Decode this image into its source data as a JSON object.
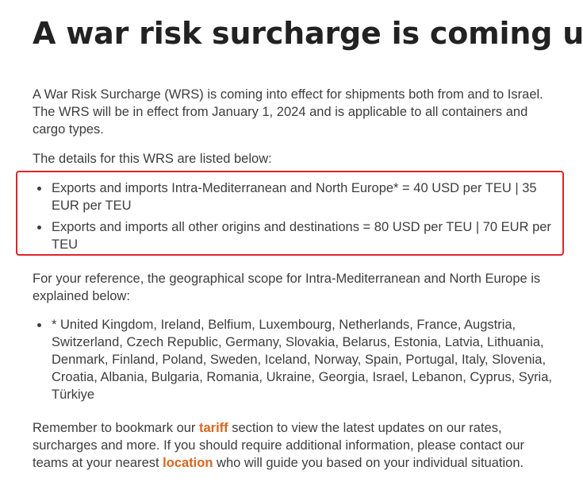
{
  "title": "A war risk surcharge is coming up",
  "intro": "A War Risk Surcharge (WRS) is coming into effect for shipments both from and to Israel. The WRS will be in effect from January 1, 2024 and is applicable to all containers and cargo types.",
  "details_intro": "The details for this WRS are listed below:",
  "rates": [
    "Exports and imports Intra-Mediterranean and North Europe* = 40 USD per TEU | 35 EUR per TEU",
    "Exports and imports all other origins and destinations = 80 USD per TEU | 70 EUR per TEU"
  ],
  "scope_intro": "For your reference, the geographical scope for Intra-Mediterranean and North Europe is explained below:",
  "scope_countries": "* United Kingdom, Ireland, Belfium, Luxembourg, Netherlands, France, Augstria, Switzerland, Czech Republic, Germany, Slovakia, Belarus, Estonia, Latvia, Lithuania, Denmark, Finland, Poland, Sweden, Iceland, Norway, Spain, Portugal, Italy, Slovenia, Croatia, Albania, Bulgaria, Romania, Ukraine, Georgia, Israel, Lebanon, Cyprus, Syria, Türkiye",
  "closing": {
    "part1": "Remember to bookmark our ",
    "tariff_link": "tariff",
    "part2": " section to view the latest updates on our rates, surcharges and more. If you should require additional information, please contact our teams at your nearest ",
    "location_link": "location",
    "part3": " who will guide you based on your individual situation."
  },
  "colors": {
    "highlight_border": "#e0242b",
    "link": "#d9661a",
    "text": "#3d3d3d",
    "heading": "#222222"
  }
}
